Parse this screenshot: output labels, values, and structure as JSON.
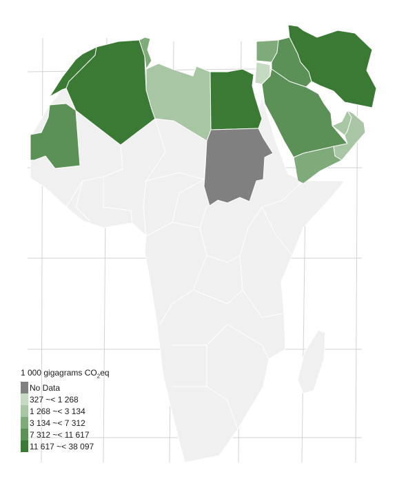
{
  "legend": {
    "title_prefix": "1 000 gigagrams CO",
    "title_subscript": "2",
    "title_suffix": "eq",
    "items": [
      {
        "label": "No Data",
        "color": "#808080"
      },
      {
        "label": "327 ~< 1 268",
        "color": "#c6d9c2"
      },
      {
        "label": "1 268 ~< 3 134",
        "color": "#a8c5a4"
      },
      {
        "label": "3 134 ~< 7 312",
        "color": "#7fab7a"
      },
      {
        "label": "7 312 ~< 11 617",
        "color": "#5b9156"
      },
      {
        "label": "11 617 ~< 38 097",
        "color": "#3a7a35"
      }
    ]
  },
  "colors": {
    "background_land": "#f0f0f0",
    "graticule": "#d2d2d2",
    "borders": "#ffffff"
  },
  "map_data": {
    "type": "choropleth",
    "variable": "1 000 gigagrams CO2eq",
    "region": "Africa and Middle East",
    "classes": [
      {
        "country": "Algeria",
        "class": "11 617 ~< 38 097"
      },
      {
        "country": "Morocco",
        "class": "11 617 ~< 38 097"
      },
      {
        "country": "Egypt",
        "class": "11 617 ~< 38 097"
      },
      {
        "country": "Iran",
        "class": "11 617 ~< 38 097"
      },
      {
        "country": "Iraq",
        "class": "7 312 ~< 11 617"
      },
      {
        "country": "Saudi Arabia",
        "class": "7 312 ~< 11 617"
      },
      {
        "country": "Mauritania",
        "class": "7 312 ~< 11 617"
      },
      {
        "country": "Tunisia",
        "class": "3 134 ~< 7 312"
      },
      {
        "country": "Syria",
        "class": "3 134 ~< 7 312"
      },
      {
        "country": "Yemen",
        "class": "3 134 ~< 7 312"
      },
      {
        "country": "Libya",
        "class": "1 268 ~< 3 134"
      },
      {
        "country": "Oman",
        "class": "1 268 ~< 3 134"
      },
      {
        "country": "United Arab Emirates",
        "class": "1 268 ~< 3 134"
      },
      {
        "country": "Jordan",
        "class": "327 ~< 1 268"
      },
      {
        "country": "Sudan",
        "class": "No Data"
      }
    ]
  }
}
